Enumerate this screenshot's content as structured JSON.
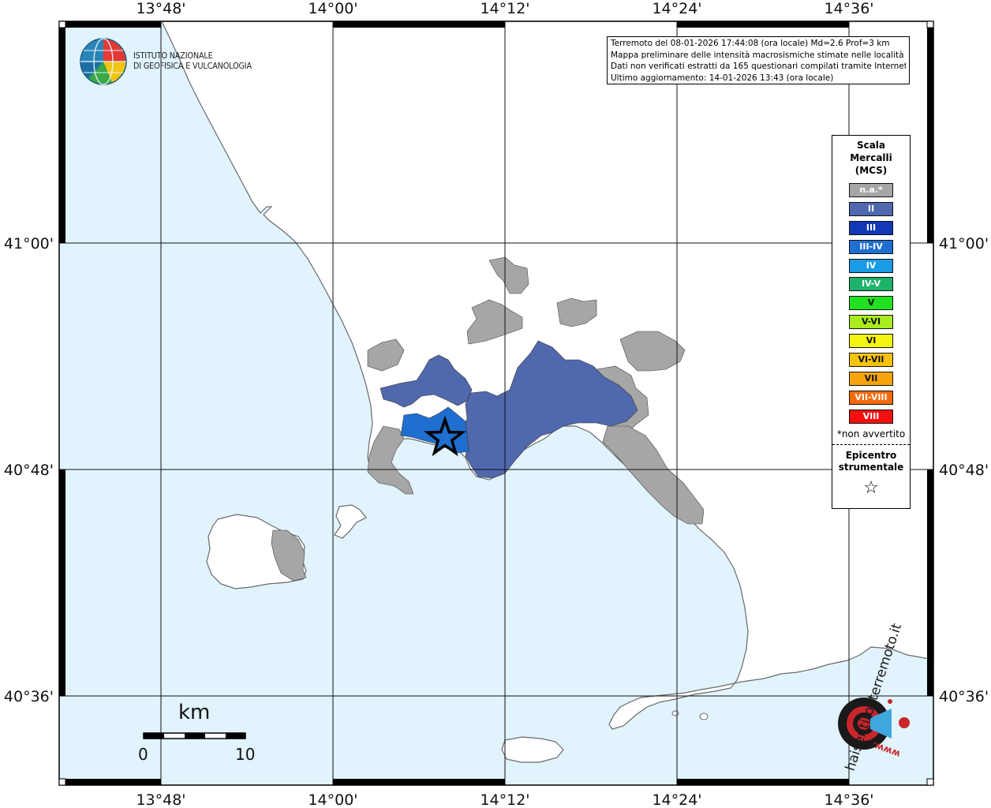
{
  "map": {
    "lon_ticks_top": [
      "13°48'",
      "14°00'",
      "14°12'",
      "14°24'",
      "14°36'"
    ],
    "lon_ticks_bottom": [
      "13°48'",
      "14°00'",
      "14°12'",
      "14°24'",
      "14°36'"
    ],
    "lat_ticks_left": [
      "41°00'",
      "40°48'",
      "40°36'"
    ],
    "lat_ticks_right": [
      "41°00'",
      "40°48'",
      "40°36'"
    ],
    "colors": {
      "sea": "#e1f3fc",
      "land": "#ffffff",
      "not_felt": "#a6a6a6",
      "intensity_II": "#5068ad",
      "intensity_III_IV": "#1f6fd1",
      "coast": "#6a6a6a"
    }
  },
  "info_box": {
    "line1": "Terremoto del 08-01-2026 17:44:08 (ora locale) Md=2.6 Prof=3 km",
    "line2": "Mappa preliminare delle intensità macrosismiche stimate nelle località",
    "line3": "Dati non verificati estratti da 165 questionari compilati tramite Internet.",
    "line4": "Ultimo aggiornamento: 14-01-2026 13:43 (ora locale)"
  },
  "logo": {
    "line1": "ISTITUTO NAZIONALE",
    "line2": "DI GEOFISICA E VULCANOLOGIA",
    "icon": "ingv-globe-icon"
  },
  "legend": {
    "title_line1": "Scala",
    "title_line2": "Mercalli",
    "title_line3": "(MCS)",
    "items": [
      {
        "label": "n.a.*",
        "color": "#a6a6a6"
      },
      {
        "label": "II",
        "color": "#5068ad"
      },
      {
        "label": "III",
        "color": "#1238b8"
      },
      {
        "label": "III-IV",
        "color": "#1f6fd1"
      },
      {
        "label": "IV",
        "color": "#1a9be6"
      },
      {
        "label": "IV-V",
        "color": "#1db36a"
      },
      {
        "label": "V",
        "color": "#22e022"
      },
      {
        "label": "V-VI",
        "color": "#a8ec1e"
      },
      {
        "label": "VI",
        "color": "#f5f512"
      },
      {
        "label": "VI-VII",
        "color": "#f7c20f"
      },
      {
        "label": "VII",
        "color": "#f7a30c"
      },
      {
        "label": "VII-VIII",
        "color": "#f76a0c"
      },
      {
        "label": "VIII",
        "color": "#f50f0f"
      }
    ],
    "not_felt_note": "*non avvertito",
    "epicenter_line1": "Epicentro",
    "epicenter_line2": "strumentale",
    "epicenter_symbol": "☆"
  },
  "scale_bar": {
    "unit": "km",
    "start": "0",
    "end": "10"
  },
  "brand": {
    "text": "haisentitoilterremoto.it",
    "url_text": "www.",
    "icon": "target-icon"
  }
}
